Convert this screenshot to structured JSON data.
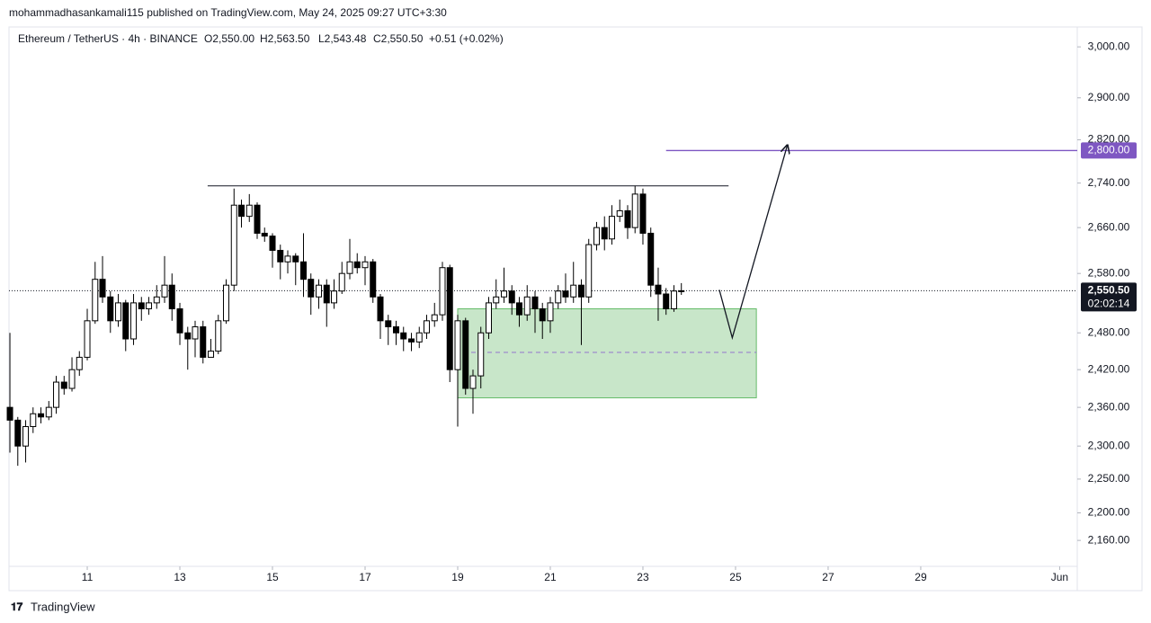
{
  "header": {
    "published": "mohammadhasankamali115 published on TradingView.com, May 24, 2025 09:27 UTC+3:30",
    "symbol": "Ethereum / TetherUS · 4h · BINANCE",
    "ohlc": [
      "O2,550.00",
      "H2,563.50",
      "L2,543.48",
      "C2,550.50",
      "+0.51 (+0.02%)"
    ],
    "brand": "TradingView"
  },
  "chart_data": {
    "type": "candlestick",
    "log_scale": true,
    "x": [
      9.33,
      9.5,
      9.67,
      9.83,
      10,
      10.17,
      10.33,
      10.5,
      10.67,
      10.83,
      11,
      11.17,
      11.33,
      11.5,
      11.67,
      11.83,
      12,
      12.17,
      12.33,
      12.5,
      12.67,
      12.83,
      13,
      13.17,
      13.33,
      13.5,
      13.67,
      13.83,
      14,
      14.17,
      14.33,
      14.5,
      14.67,
      14.83,
      15,
      15.17,
      15.33,
      15.5,
      15.67,
      15.83,
      16,
      16.17,
      16.33,
      16.5,
      16.67,
      16.83,
      17,
      17.17,
      17.33,
      17.5,
      17.67,
      17.83,
      18,
      18.17,
      18.33,
      18.5,
      18.67,
      18.83,
      19,
      19.17,
      19.33,
      19.5,
      19.67,
      19.83,
      20,
      20.17,
      20.33,
      20.5,
      20.67,
      20.83,
      21,
      21.17,
      21.33,
      21.5,
      21.67,
      21.83,
      22,
      22.17,
      22.33,
      22.5,
      22.67,
      22.83,
      23,
      23.17,
      23.33,
      23.5,
      23.67,
      23.83
    ],
    "open": [
      2360,
      2340,
      2300,
      2330,
      2350,
      2345,
      2360,
      2400,
      2390,
      2420,
      2440,
      2500,
      2570,
      2540,
      2500,
      2530,
      2470,
      2530,
      2520,
      2530,
      2540,
      2560,
      2520,
      2480,
      2470,
      2490,
      2440,
      2450,
      2500,
      2560,
      2700,
      2680,
      2700,
      2650,
      2645,
      2620,
      2600,
      2610,
      2600,
      2570,
      2540,
      2560,
      2530,
      2550,
      2580,
      2600,
      2590,
      2600,
      2540,
      2500,
      2490,
      2480,
      2470,
      2465,
      2480,
      2500,
      2510,
      2590,
      2420,
      2500,
      2390,
      2410,
      2480,
      2530,
      2540,
      2550,
      2530,
      2510,
      2540,
      2520,
      2500,
      2530,
      2550,
      2540,
      2560,
      2540,
      2630,
      2660,
      2640,
      2680,
      2690,
      2660,
      2720,
      2650,
      2560,
      2545,
      2520,
      2550
    ],
    "high": [
      2480,
      2345,
      2340,
      2360,
      2360,
      2370,
      2410,
      2410,
      2440,
      2450,
      2520,
      2600,
      2610,
      2550,
      2545,
      2535,
      2545,
      2540,
      2540,
      2560,
      2610,
      2580,
      2530,
      2490,
      2500,
      2500,
      2470,
      2510,
      2570,
      2730,
      2710,
      2720,
      2705,
      2660,
      2650,
      2630,
      2620,
      2615,
      2650,
      2580,
      2570,
      2570,
      2570,
      2600,
      2640,
      2615,
      2610,
      2605,
      2545,
      2510,
      2500,
      2490,
      2480,
      2490,
      2510,
      2530,
      2600,
      2595,
      2510,
      2505,
      2420,
      2490,
      2540,
      2570,
      2590,
      2560,
      2540,
      2560,
      2550,
      2530,
      2540,
      2560,
      2580,
      2600,
      2570,
      2640,
      2670,
      2680,
      2700,
      2710,
      2700,
      2735,
      2730,
      2660,
      2590,
      2555,
      2560,
      2563.5
    ],
    "low": [
      2290,
      2270,
      2275,
      2320,
      2335,
      2340,
      2350,
      2380,
      2385,
      2410,
      2435,
      2495,
      2530,
      2480,
      2490,
      2450,
      2460,
      2500,
      2510,
      2520,
      2530,
      2500,
      2460,
      2420,
      2440,
      2430,
      2440,
      2445,
      2495,
      2550,
      2660,
      2670,
      2640,
      2635,
      2590,
      2570,
      2580,
      2560,
      2540,
      2510,
      2520,
      2490,
      2520,
      2545,
      2570,
      2580,
      2560,
      2530,
      2470,
      2460,
      2460,
      2450,
      2450,
      2455,
      2470,
      2490,
      2500,
      2400,
      2330,
      2380,
      2350,
      2390,
      2470,
      2520,
      2530,
      2510,
      2490,
      2500,
      2480,
      2470,
      2480,
      2520,
      2530,
      2530,
      2460,
      2530,
      2620,
      2620,
      2630,
      2670,
      2640,
      2650,
      2630,
      2540,
      2500,
      2510,
      2515,
      2543.48
    ],
    "close": [
      2340,
      2300,
      2330,
      2350,
      2345,
      2360,
      2400,
      2390,
      2420,
      2440,
      2500,
      2570,
      2540,
      2500,
      2530,
      2470,
      2530,
      2520,
      2530,
      2540,
      2560,
      2520,
      2480,
      2470,
      2490,
      2440,
      2450,
      2500,
      2560,
      2700,
      2680,
      2700,
      2650,
      2645,
      2620,
      2600,
      2610,
      2600,
      2570,
      2540,
      2560,
      2530,
      2550,
      2580,
      2600,
      2590,
      2600,
      2540,
      2500,
      2490,
      2480,
      2470,
      2465,
      2480,
      2500,
      2510,
      2590,
      2420,
      2500,
      2390,
      2410,
      2480,
      2530,
      2540,
      2550,
      2530,
      2510,
      2540,
      2520,
      2500,
      2530,
      2550,
      2540,
      2560,
      2540,
      2630,
      2660,
      2640,
      2680,
      2690,
      2660,
      2720,
      2650,
      2560,
      2545,
      2520,
      2550,
      2550.5
    ],
    "up_color": "#ffffff",
    "down_color": "#000000",
    "xlim": [
      9.31,
      32.38
    ],
    "xticks": [
      11,
      13,
      15,
      17,
      19,
      21,
      23,
      25,
      27,
      29,
      {
        "value": 32,
        "label": "Jun"
      }
    ],
    "ylim": [
      2123,
      3040
    ],
    "yticks": [
      {
        "value": 3000,
        "label": "3,000.00"
      },
      {
        "value": 2900,
        "label": "2,900.00"
      },
      {
        "value": 2820,
        "label": "2,820.00"
      },
      {
        "value": 2740,
        "label": "2,740.00"
      },
      {
        "value": 2660,
        "label": "2,660.00"
      },
      {
        "value": 2580,
        "label": "2,580.00"
      },
      {
        "value": 2480,
        "label": "2,480.00"
      },
      {
        "value": 2420,
        "label": "2,420.00"
      },
      {
        "value": 2360,
        "label": "2,360.00"
      },
      {
        "value": 2300,
        "label": "2,300.00"
      },
      {
        "value": 2250,
        "label": "2,250.00"
      },
      {
        "value": 2200,
        "label": "2,200.00"
      },
      {
        "value": 2160,
        "label": "2,160.00"
      }
    ],
    "last_price": {
      "value": 2550.5,
      "label": "2,550.50"
    },
    "countdown": "02:02:14",
    "target": {
      "value": 2800,
      "label": "2,800.00",
      "x_start": 23.5,
      "color": "#7e57c2"
    },
    "resistance": {
      "price": 2735,
      "x": [
        13.6,
        24.85
      ]
    },
    "zone": {
      "low": 2375,
      "high": 2520,
      "mid": 2448,
      "x": [
        19.0,
        25.45
      ],
      "color": "#c8e6c9"
    },
    "path": {
      "x": [
        24.65,
        24.93,
        26.12
      ],
      "y": [
        2552,
        2472,
        2810
      ]
    }
  }
}
